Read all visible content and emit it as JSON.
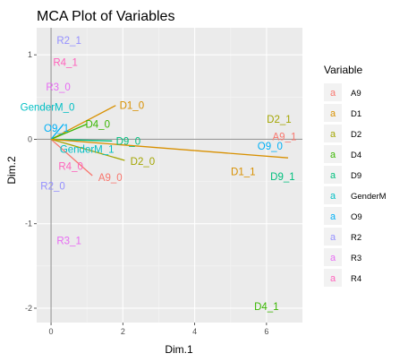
{
  "chart_data": {
    "type": "scatter",
    "title": "MCA Plot of Variables",
    "xlabel": "Dim.1",
    "ylabel": "Dim.2",
    "xlim": [
      -0.4,
      7.0
    ],
    "ylim": [
      -2.17,
      1.32
    ],
    "xticks": [
      0,
      2,
      4,
      6
    ],
    "yticks": [
      -2,
      -1,
      0,
      1
    ],
    "xtick_labels": [
      "0",
      "2",
      "4",
      "6"
    ],
    "ytick_labels": [
      "-2",
      "-1",
      "0",
      "1"
    ],
    "reference_lines": {
      "x": 0,
      "y": 0
    },
    "grid": true,
    "legend": {
      "title": "Variable",
      "position": "right",
      "key_glyph": "a",
      "entries": [
        {
          "name": "A9",
          "color": "#F8766D"
        },
        {
          "name": "D1",
          "color": "#D89000"
        },
        {
          "name": "D2",
          "color": "#A3A500"
        },
        {
          "name": "D4",
          "color": "#39B600"
        },
        {
          "name": "D9",
          "color": "#00BF7D"
        },
        {
          "name": "GenderM",
          "color": "#00BFC4"
        },
        {
          "name": "O9",
          "color": "#00B0F6"
        },
        {
          "name": "R2",
          "color": "#9590FF"
        },
        {
          "name": "R3",
          "color": "#E76BF3"
        },
        {
          "name": "R4",
          "color": "#FF62BC"
        }
      ]
    },
    "arrows": [
      {
        "variable": "D1",
        "x": 1.8,
        "y": 0.4
      },
      {
        "variable": "D4",
        "x": 1.0,
        "y": 0.18
      },
      {
        "variable": "A9",
        "x": 1.15,
        "y": -0.43
      },
      {
        "variable": "D2",
        "x": 2.05,
        "y": -0.25
      },
      {
        "variable": "O9",
        "x": 0.35,
        "y": 0.18
      },
      {
        "variable": "D9",
        "x": 1.7,
        "y": -0.02
      },
      {
        "variable": "D1",
        "x": 6.6,
        "y": -0.22
      }
    ],
    "points": [
      {
        "label": "R2_1",
        "variable": "R2",
        "x": 0.5,
        "y": 1.17
      },
      {
        "label": "R4_1",
        "variable": "R4",
        "x": 0.4,
        "y": 0.91
      },
      {
        "label": "R3_0",
        "variable": "R3",
        "x": 0.2,
        "y": 0.62
      },
      {
        "label": "GenderM_0",
        "variable": "GenderM",
        "x": -0.1,
        "y": 0.38
      },
      {
        "label": "D1_0",
        "variable": "D1",
        "x": 2.25,
        "y": 0.4
      },
      {
        "label": "D4_0",
        "variable": "D4",
        "x": 1.3,
        "y": 0.18
      },
      {
        "label": "O9_1",
        "variable": "O9",
        "x": 0.15,
        "y": 0.13
      },
      {
        "label": "D9_0",
        "variable": "D9",
        "x": 2.15,
        "y": -0.02
      },
      {
        "label": "GenderM_1",
        "variable": "GenderM",
        "x": 1.0,
        "y": -0.12
      },
      {
        "label": "D2_0",
        "variable": "D2",
        "x": 2.55,
        "y": -0.26
      },
      {
        "label": "R4_0",
        "variable": "R4",
        "x": 0.55,
        "y": -0.32
      },
      {
        "label": "A9_0",
        "variable": "A9",
        "x": 1.65,
        "y": -0.45
      },
      {
        "label": "R2_0",
        "variable": "R2",
        "x": 0.05,
        "y": -0.55
      },
      {
        "label": "R3_1",
        "variable": "R3",
        "x": 0.5,
        "y": -1.2
      },
      {
        "label": "D2_1",
        "variable": "D2",
        "x": 6.35,
        "y": 0.24
      },
      {
        "label": "O9_0",
        "variable": "O9",
        "x": 6.1,
        "y": -0.08
      },
      {
        "label": "A9_1",
        "variable": "A9",
        "x": 6.5,
        "y": 0.03
      },
      {
        "label": "D1_1",
        "variable": "D1",
        "x": 5.35,
        "y": -0.38
      },
      {
        "label": "D9_1",
        "variable": "D9",
        "x": 6.45,
        "y": -0.44
      },
      {
        "label": "D4_1",
        "variable": "D4",
        "x": 6.0,
        "y": -1.98
      }
    ]
  }
}
